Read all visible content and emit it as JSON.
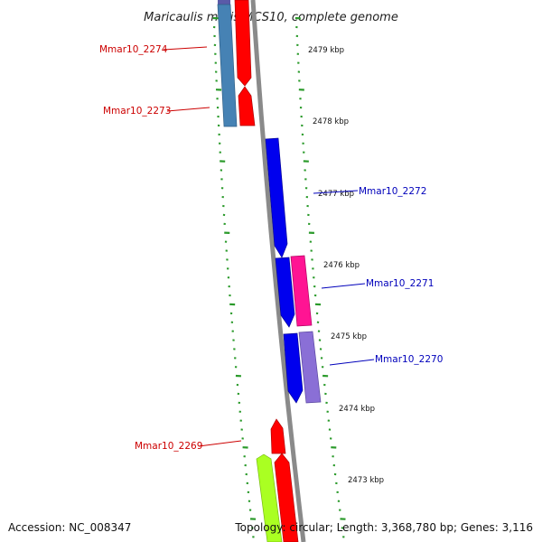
{
  "title": "Maricaulis maris MCS10, complete genome",
  "footer": {
    "accession": "Accession: NC_008347",
    "summary": "Topology: circular; Length: 3,368,780 bp; Genes: 3,116"
  },
  "colors": {
    "backbone": "#888888",
    "ticks": "#2a9a2a",
    "label_forward": "#cc0000",
    "label_reverse": "#0000bb",
    "red_gene": "#ff0000",
    "blue_gene": "#0000ee",
    "steelblue_gene": "#4682b4",
    "magenta_gene": "#ff1493",
    "purple_gene": "#8a6fd6",
    "lime_gene": "#aaff22"
  },
  "scale_labels": [
    "2479 kbp",
    "2478 kbp",
    "2477 kbp",
    "2476 kbp",
    "2475 kbp",
    "2474 kbp",
    "2473 kbp"
  ],
  "gene_labels": [
    {
      "name": "Mmar10_2274",
      "strand": "forward"
    },
    {
      "name": "Mmar10_2273",
      "strand": "forward"
    },
    {
      "name": "Mmar10_2272",
      "strand": "reverse"
    },
    {
      "name": "Mmar10_2271",
      "strand": "reverse"
    },
    {
      "name": "Mmar10_2270",
      "strand": "reverse"
    },
    {
      "name": "Mmar10_2269",
      "strand": "forward"
    }
  ]
}
